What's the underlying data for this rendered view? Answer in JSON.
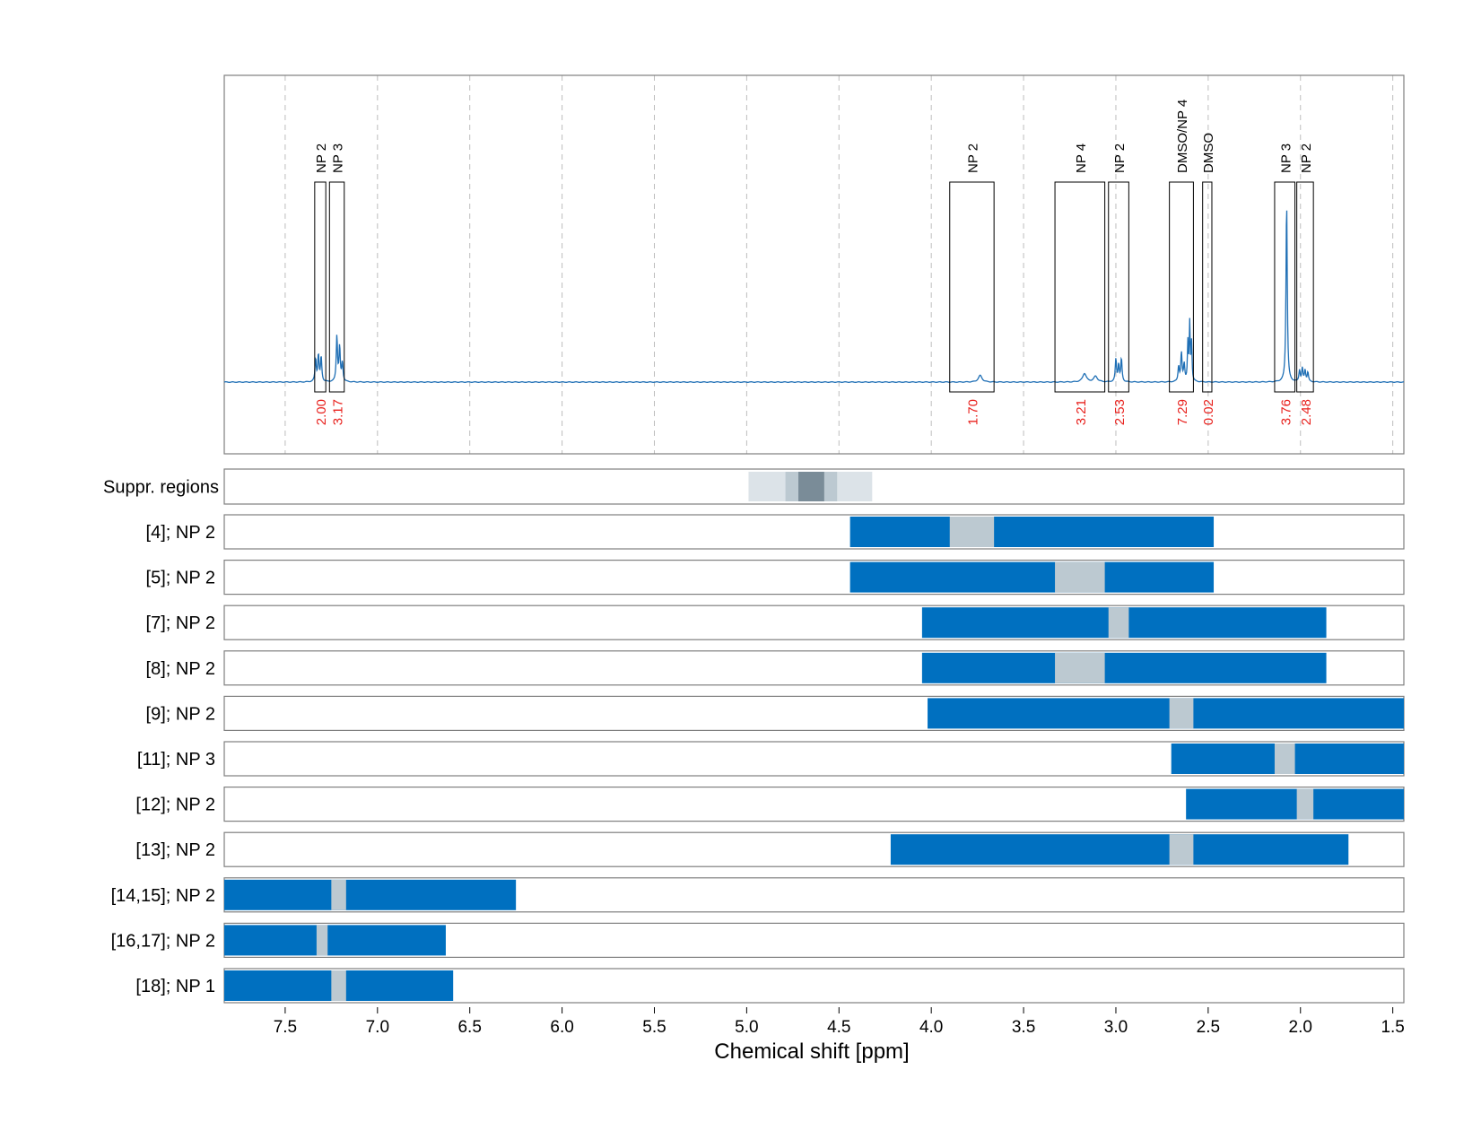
{
  "chart_data": {
    "type": "nmr-spectrum-with-range-bars",
    "xlabel": "Chemical shift [ppm]",
    "xlim": [
      7.83,
      1.44
    ],
    "x_reversed": true,
    "x_ticks": [
      7.5,
      7.0,
      6.5,
      6.0,
      5.5,
      5.0,
      4.5,
      4.0,
      3.5,
      3.0,
      2.5,
      2.0,
      1.5
    ],
    "x_tick_labels": [
      "7.5",
      "7.0",
      "6.5",
      "6.0",
      "5.5",
      "5.0",
      "4.5",
      "4.0",
      "3.5",
      "3.0",
      "2.5",
      "2.0",
      "1.5"
    ],
    "grid": "vertical dashed at ticks",
    "colors": {
      "spectrum": "#1f6fb5",
      "range_bar": "#0070c0",
      "integration_window": "#bcc9d1",
      "integral_label": "#e8221e",
      "suppr_outer": "#dce3e8",
      "suppr_mid": "#bcc9d1",
      "suppr_inner": "#7a8c98"
    },
    "spectrum_peaks": [
      {
        "ppm": 7.335,
        "height": 0.12,
        "width": 0.004
      },
      {
        "ppm": 7.32,
        "height": 0.14,
        "width": 0.004
      },
      {
        "ppm": 7.305,
        "height": 0.13,
        "width": 0.004
      },
      {
        "ppm": 7.22,
        "height": 0.24,
        "width": 0.004
      },
      {
        "ppm": 7.205,
        "height": 0.18,
        "width": 0.004
      },
      {
        "ppm": 7.19,
        "height": 0.1,
        "width": 0.004
      },
      {
        "ppm": 3.735,
        "height": 0.035,
        "width": 0.012
      },
      {
        "ppm": 3.17,
        "height": 0.045,
        "width": 0.012
      },
      {
        "ppm": 3.11,
        "height": 0.03,
        "width": 0.012
      },
      {
        "ppm": 3.0,
        "height": 0.12,
        "width": 0.004
      },
      {
        "ppm": 2.985,
        "height": 0.09,
        "width": 0.004
      },
      {
        "ppm": 2.97,
        "height": 0.12,
        "width": 0.004
      },
      {
        "ppm": 2.66,
        "height": 0.08,
        "width": 0.004
      },
      {
        "ppm": 2.645,
        "height": 0.15,
        "width": 0.004
      },
      {
        "ppm": 2.63,
        "height": 0.09,
        "width": 0.004
      },
      {
        "ppm": 2.61,
        "height": 0.2,
        "width": 0.003
      },
      {
        "ppm": 2.6,
        "height": 0.3,
        "width": 0.003
      },
      {
        "ppm": 2.59,
        "height": 0.2,
        "width": 0.003
      },
      {
        "ppm": 2.075,
        "height": 0.95,
        "width": 0.004
      },
      {
        "ppm": 2.005,
        "height": 0.06,
        "width": 0.004
      },
      {
        "ppm": 1.99,
        "height": 0.07,
        "width": 0.004
      },
      {
        "ppm": 1.975,
        "height": 0.06,
        "width": 0.004
      },
      {
        "ppm": 1.96,
        "height": 0.05,
        "width": 0.004
      }
    ],
    "integration_regions": [
      {
        "label": "NP 2",
        "from": 7.34,
        "to": 7.28,
        "integral": "2.00"
      },
      {
        "label": "NP 3",
        "from": 7.26,
        "to": 7.18,
        "integral": "3.17"
      },
      {
        "label": "NP 2",
        "from": 3.9,
        "to": 3.66,
        "integral": "1.70"
      },
      {
        "label": "NP 4",
        "from": 3.33,
        "to": 3.06,
        "integral": "3.21"
      },
      {
        "label": "NP 2",
        "from": 3.04,
        "to": 2.93,
        "integral": "2.53"
      },
      {
        "label": "DMSO/NP 4",
        "from": 2.71,
        "to": 2.58,
        "integral": "7.29"
      },
      {
        "label": "DMSO",
        "from": 2.53,
        "to": 2.48,
        "integral": "0.02"
      },
      {
        "label": "NP 3",
        "from": 2.14,
        "to": 2.03,
        "integral": "3.76"
      },
      {
        "label": "NP 2",
        "from": 2.02,
        "to": 1.93,
        "integral": "2.48"
      }
    ],
    "suppression_label": "Suppr. regions",
    "suppression_regions": [
      {
        "from": 4.99,
        "to": 4.32,
        "level": "outer"
      },
      {
        "from": 4.79,
        "to": 4.51,
        "level": "mid"
      },
      {
        "from": 4.72,
        "to": 4.58,
        "level": "inner"
      }
    ],
    "range_rows": [
      {
        "label": "[4]; NP 2",
        "from": 4.44,
        "to": 2.47,
        "window_from": 3.9,
        "window_to": 3.66
      },
      {
        "label": "[5]; NP 2",
        "from": 4.44,
        "to": 2.47,
        "window_from": 3.33,
        "window_to": 3.06
      },
      {
        "label": "[7]; NP 2",
        "from": 4.05,
        "to": 1.86,
        "window_from": 3.04,
        "window_to": 2.93
      },
      {
        "label": "[8]; NP 2",
        "from": 4.05,
        "to": 1.86,
        "window_from": 3.33,
        "window_to": 3.06
      },
      {
        "label": "[9]; NP 2",
        "from": 4.02,
        "to": 1.44,
        "window_from": 2.71,
        "window_to": 2.58
      },
      {
        "label": "[11]; NP 3",
        "from": 2.7,
        "to": 1.44,
        "window_from": 2.14,
        "window_to": 2.03
      },
      {
        "label": "[12]; NP 2",
        "from": 2.62,
        "to": 1.44,
        "window_from": 2.02,
        "window_to": 1.93
      },
      {
        "label": "[13]; NP 2",
        "from": 4.22,
        "to": 1.74,
        "window_from": 2.71,
        "window_to": 2.58
      },
      {
        "label": "[14,15]; NP 2",
        "from": 7.83,
        "to": 6.25,
        "window_from": 7.25,
        "window_to": 7.17
      },
      {
        "label": "[16,17]; NP 2",
        "from": 7.83,
        "to": 6.63,
        "window_from": 7.33,
        "window_to": 7.27
      },
      {
        "label": "[18]; NP 1",
        "from": 7.83,
        "to": 6.59,
        "window_from": 7.25,
        "window_to": 7.17
      }
    ]
  }
}
